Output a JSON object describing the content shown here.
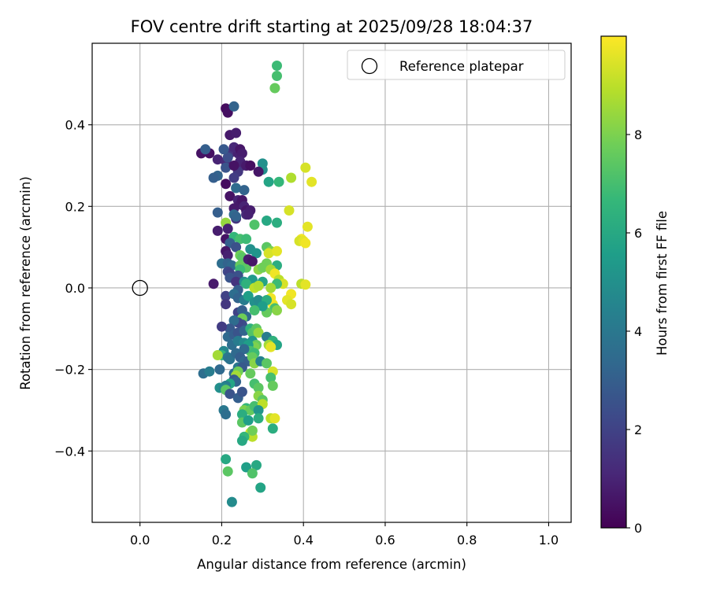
{
  "chart_data": {
    "type": "scatter",
    "title": "FOV centre drift starting at 2025/09/28 18:04:37",
    "xlabel": "Angular distance from reference (arcmin)",
    "ylabel": "Rotation from reference (arcmin)",
    "xlim": [
      -0.117,
      1.055
    ],
    "ylim": [
      -0.575,
      0.6
    ],
    "xticks": [
      0.0,
      0.2,
      0.4,
      0.6,
      0.8,
      1.0
    ],
    "xtick_labels": [
      "0.0",
      "0.2",
      "0.4",
      "0.6",
      "0.8",
      "1.0"
    ],
    "yticks": [
      0.4,
      0.2,
      0.0,
      -0.2,
      -0.4
    ],
    "ytick_labels": [
      "0.4",
      "0.2",
      "0.0",
      "−0.2",
      "−0.4"
    ],
    "grid": true,
    "legend": {
      "position": "top-right",
      "entries": [
        "Reference platepar"
      ]
    },
    "reference_point": {
      "x": 0.0,
      "y": 0.0
    },
    "colorbar": {
      "label": "Hours from first FF file",
      "range": [
        0,
        10
      ],
      "ticks": [
        0,
        2,
        4,
        6,
        8
      ],
      "tick_labels": [
        "0",
        "2",
        "4",
        "6",
        "8"
      ],
      "colormap": [
        "#440154",
        "#482878",
        "#3e4989",
        "#31688e",
        "#26828e",
        "#1f9e89",
        "#35b779",
        "#6ece58",
        "#b5de2b",
        "#fde725"
      ]
    },
    "series": [
      {
        "name": "FOV centre drift",
        "points": [
          [
            0.21,
            0.44,
            0.3
          ],
          [
            0.215,
            0.43,
            0.4
          ],
          [
            0.22,
            0.375,
            0.7
          ],
          [
            0.235,
            0.38,
            0.8
          ],
          [
            0.23,
            0.445,
            3.2
          ],
          [
            0.15,
            0.33,
            0.5
          ],
          [
            0.17,
            0.33,
            0.4
          ],
          [
            0.16,
            0.34,
            3.0
          ],
          [
            0.19,
            0.315,
            1.0
          ],
          [
            0.21,
            0.31,
            1.2
          ],
          [
            0.22,
            0.33,
            1.5
          ],
          [
            0.24,
            0.33,
            0.9
          ],
          [
            0.23,
            0.345,
            1.1
          ],
          [
            0.245,
            0.34,
            0.6
          ],
          [
            0.25,
            0.33,
            0.8
          ],
          [
            0.25,
            0.3,
            1.3
          ],
          [
            0.245,
            0.31,
            1.0
          ],
          [
            0.21,
            0.295,
            2.6
          ],
          [
            0.215,
            0.32,
            2.4
          ],
          [
            0.205,
            0.34,
            2.8
          ],
          [
            0.24,
            0.285,
            1.6
          ],
          [
            0.23,
            0.3,
            0.5
          ],
          [
            0.26,
            0.3,
            0.7
          ],
          [
            0.27,
            0.3,
            0.4
          ],
          [
            0.19,
            0.275,
            3.2
          ],
          [
            0.18,
            0.27,
            3.0
          ],
          [
            0.21,
            0.255,
            0.3
          ],
          [
            0.23,
            0.27,
            1.8
          ],
          [
            0.235,
            0.245,
            3.5
          ],
          [
            0.255,
            0.24,
            3.2
          ],
          [
            0.3,
            0.305,
            5.0
          ],
          [
            0.3,
            0.29,
            5.0
          ],
          [
            0.29,
            0.285,
            0.6
          ],
          [
            0.315,
            0.26,
            5.8
          ],
          [
            0.34,
            0.26,
            6.6
          ],
          [
            0.37,
            0.27,
            8.8
          ],
          [
            0.405,
            0.295,
            9.4
          ],
          [
            0.42,
            0.26,
            9.6
          ],
          [
            0.33,
            0.49,
            7.6
          ],
          [
            0.335,
            0.52,
            7.0
          ],
          [
            0.335,
            0.545,
            6.8
          ],
          [
            0.22,
            0.225,
            0.5
          ],
          [
            0.24,
            0.215,
            1.0
          ],
          [
            0.245,
            0.205,
            0.7
          ],
          [
            0.25,
            0.215,
            0.6
          ],
          [
            0.23,
            0.195,
            0.7
          ],
          [
            0.255,
            0.2,
            1.0
          ],
          [
            0.26,
            0.19,
            0.6
          ],
          [
            0.26,
            0.18,
            1.2
          ],
          [
            0.27,
            0.19,
            0.8
          ],
          [
            0.19,
            0.185,
            3.0
          ],
          [
            0.23,
            0.18,
            3.4
          ],
          [
            0.235,
            0.17,
            1.5
          ],
          [
            0.265,
            0.18,
            0.9
          ],
          [
            0.21,
            0.16,
            8.4
          ],
          [
            0.215,
            0.145,
            0.9
          ],
          [
            0.19,
            0.14,
            0.8
          ],
          [
            0.235,
            0.175,
            3.2
          ],
          [
            0.31,
            0.165,
            6.0
          ],
          [
            0.335,
            0.16,
            6.2
          ],
          [
            0.28,
            0.155,
            7.2
          ],
          [
            0.365,
            0.19,
            9.4
          ],
          [
            0.41,
            0.15,
            9.6
          ],
          [
            0.395,
            0.12,
            9.8
          ],
          [
            0.39,
            0.115,
            9.4
          ],
          [
            0.4,
            0.115,
            9.6
          ],
          [
            0.405,
            0.11,
            9.8
          ],
          [
            0.21,
            0.12,
            0.5
          ],
          [
            0.23,
            0.125,
            6.6
          ],
          [
            0.245,
            0.12,
            7.0
          ],
          [
            0.26,
            0.12,
            6.8
          ],
          [
            0.22,
            0.11,
            3.0
          ],
          [
            0.235,
            0.1,
            2.5
          ],
          [
            0.27,
            0.095,
            5.0
          ],
          [
            0.285,
            0.085,
            5.2
          ],
          [
            0.31,
            0.1,
            7.4
          ],
          [
            0.32,
            0.09,
            8.0
          ],
          [
            0.315,
            0.085,
            9.4
          ],
          [
            0.335,
            0.09,
            9.6
          ],
          [
            0.21,
            0.09,
            0.6
          ],
          [
            0.215,
            0.08,
            0.9
          ],
          [
            0.245,
            0.08,
            7.8
          ],
          [
            0.25,
            0.075,
            7.4
          ],
          [
            0.2,
            0.06,
            3.6
          ],
          [
            0.215,
            0.06,
            3.2
          ],
          [
            0.225,
            0.055,
            3.4
          ],
          [
            0.245,
            0.055,
            7.6
          ],
          [
            0.26,
            0.05,
            7.4
          ],
          [
            0.245,
            0.045,
            6.8
          ],
          [
            0.265,
            0.07,
            0.8
          ],
          [
            0.275,
            0.065,
            0.6
          ],
          [
            0.31,
            0.06,
            7.8
          ],
          [
            0.335,
            0.055,
            6.2
          ],
          [
            0.29,
            0.045,
            8.2
          ],
          [
            0.3,
            0.05,
            7.8
          ],
          [
            0.32,
            0.045,
            8.6
          ],
          [
            0.215,
            0.04,
            2.2
          ],
          [
            0.22,
            0.035,
            2.0
          ],
          [
            0.22,
            0.025,
            2.6
          ],
          [
            0.24,
            0.03,
            2.5
          ],
          [
            0.235,
            0.015,
            1.5
          ],
          [
            0.255,
            0.015,
            5.0
          ],
          [
            0.275,
            0.02,
            5.4
          ],
          [
            0.3,
            0.015,
            5.8
          ],
          [
            0.33,
            0.035,
            9.8
          ],
          [
            0.34,
            0.02,
            9.0
          ],
          [
            0.35,
            0.01,
            9.4
          ],
          [
            0.335,
            0.01,
            6.8
          ],
          [
            0.18,
            0.01,
            0.7
          ],
          [
            0.26,
            0.01,
            6.4
          ],
          [
            0.395,
            0.01,
            9.0
          ],
          [
            0.405,
            0.008,
            9.6
          ],
          [
            0.24,
            -0.005,
            3.0
          ],
          [
            0.28,
            0.0,
            9.0
          ],
          [
            0.29,
            0.005,
            8.8
          ],
          [
            0.32,
            0.0,
            8.6
          ],
          [
            0.37,
            -0.015,
            9.8
          ],
          [
            0.36,
            -0.03,
            9.6
          ],
          [
            0.37,
            -0.04,
            9.4
          ],
          [
            0.32,
            -0.025,
            9.8
          ],
          [
            0.325,
            -0.04,
            9.8
          ],
          [
            0.21,
            -0.02,
            2.0
          ],
          [
            0.21,
            -0.04,
            1.6
          ],
          [
            0.23,
            -0.015,
            3.6
          ],
          [
            0.24,
            -0.025,
            3.2
          ],
          [
            0.255,
            -0.03,
            4.2
          ],
          [
            0.265,
            -0.02,
            5.6
          ],
          [
            0.28,
            -0.035,
            5.0
          ],
          [
            0.29,
            -0.03,
            4.8
          ],
          [
            0.31,
            -0.03,
            6.2
          ],
          [
            0.33,
            -0.05,
            7.0
          ],
          [
            0.335,
            -0.055,
            8.2
          ],
          [
            0.31,
            -0.06,
            7.6
          ],
          [
            0.3,
            -0.045,
            5.5
          ],
          [
            0.28,
            -0.055,
            7.0
          ],
          [
            0.24,
            -0.06,
            2.0
          ],
          [
            0.25,
            -0.055,
            3.0
          ],
          [
            0.26,
            -0.07,
            3.4
          ],
          [
            0.25,
            -0.075,
            7.8
          ],
          [
            0.25,
            -0.09,
            2.4
          ],
          [
            0.24,
            -0.085,
            2.2
          ],
          [
            0.23,
            -0.08,
            3.5
          ],
          [
            0.22,
            -0.1,
            2.8
          ],
          [
            0.2,
            -0.095,
            1.8
          ],
          [
            0.215,
            -0.12,
            3.4
          ],
          [
            0.23,
            -0.115,
            3.0
          ],
          [
            0.24,
            -0.11,
            2.6
          ],
          [
            0.255,
            -0.105,
            3.2
          ],
          [
            0.27,
            -0.1,
            6.4
          ],
          [
            0.275,
            -0.11,
            7.2
          ],
          [
            0.285,
            -0.1,
            7.4
          ],
          [
            0.29,
            -0.11,
            8.4
          ],
          [
            0.275,
            -0.13,
            5.2
          ],
          [
            0.285,
            -0.14,
            7.6
          ],
          [
            0.28,
            -0.145,
            8.0
          ],
          [
            0.31,
            -0.12,
            4.2
          ],
          [
            0.325,
            -0.13,
            6.4
          ],
          [
            0.335,
            -0.14,
            5.8
          ],
          [
            0.315,
            -0.14,
            8.6
          ],
          [
            0.32,
            -0.145,
            9.6
          ],
          [
            0.225,
            -0.14,
            3.6
          ],
          [
            0.24,
            -0.13,
            4.2
          ],
          [
            0.255,
            -0.135,
            4.8
          ],
          [
            0.265,
            -0.14,
            5.6
          ],
          [
            0.27,
            -0.155,
            7.0
          ],
          [
            0.28,
            -0.16,
            6.8
          ],
          [
            0.255,
            -0.15,
            3.4
          ],
          [
            0.205,
            -0.155,
            4.6
          ],
          [
            0.2,
            -0.165,
            6.6
          ],
          [
            0.19,
            -0.165,
            8.6
          ],
          [
            0.215,
            -0.17,
            4.0
          ],
          [
            0.22,
            -0.175,
            3.8
          ],
          [
            0.235,
            -0.16,
            3.4
          ],
          [
            0.245,
            -0.17,
            3.0
          ],
          [
            0.255,
            -0.18,
            3.3
          ],
          [
            0.265,
            -0.18,
            3.0
          ],
          [
            0.275,
            -0.17,
            7.6
          ],
          [
            0.28,
            -0.185,
            8.2
          ],
          [
            0.295,
            -0.18,
            4.4
          ],
          [
            0.31,
            -0.185,
            7.4
          ],
          [
            0.325,
            -0.205,
            9.4
          ],
          [
            0.24,
            -0.195,
            4.0
          ],
          [
            0.25,
            -0.195,
            2.8
          ],
          [
            0.23,
            -0.21,
            3.6
          ],
          [
            0.24,
            -0.205,
            7.8
          ],
          [
            0.235,
            -0.215,
            8.6
          ],
          [
            0.27,
            -0.21,
            7.6
          ],
          [
            0.32,
            -0.22,
            7.0
          ],
          [
            0.155,
            -0.21,
            3.6
          ],
          [
            0.17,
            -0.205,
            4.2
          ],
          [
            0.195,
            -0.2,
            3.4
          ],
          [
            0.23,
            -0.225,
            2.8
          ],
          [
            0.235,
            -0.23,
            3.2
          ],
          [
            0.22,
            -0.235,
            5.8
          ],
          [
            0.21,
            -0.24,
            4.2
          ],
          [
            0.195,
            -0.245,
            5.0
          ],
          [
            0.205,
            -0.245,
            4.6
          ],
          [
            0.21,
            -0.25,
            7.4
          ],
          [
            0.22,
            -0.26,
            2.6
          ],
          [
            0.24,
            -0.27,
            3.0
          ],
          [
            0.25,
            -0.255,
            2.6
          ],
          [
            0.28,
            -0.235,
            7.0
          ],
          [
            0.29,
            -0.245,
            7.4
          ],
          [
            0.325,
            -0.24,
            7.6
          ],
          [
            0.29,
            -0.265,
            8.2
          ],
          [
            0.3,
            -0.275,
            7.4
          ],
          [
            0.26,
            -0.295,
            6.6
          ],
          [
            0.255,
            -0.3,
            8.0
          ],
          [
            0.27,
            -0.3,
            7.6
          ],
          [
            0.28,
            -0.29,
            7.0
          ],
          [
            0.3,
            -0.285,
            9.0
          ],
          [
            0.29,
            -0.3,
            5.2
          ],
          [
            0.205,
            -0.3,
            4.0
          ],
          [
            0.21,
            -0.31,
            3.6
          ],
          [
            0.25,
            -0.31,
            6.2
          ],
          [
            0.25,
            -0.33,
            7.4
          ],
          [
            0.265,
            -0.325,
            5.6
          ],
          [
            0.29,
            -0.32,
            6.2
          ],
          [
            0.32,
            -0.32,
            9.0
          ],
          [
            0.33,
            -0.32,
            9.6
          ],
          [
            0.325,
            -0.345,
            6.2
          ],
          [
            0.27,
            -0.355,
            9.2
          ],
          [
            0.275,
            -0.365,
            9.0
          ],
          [
            0.255,
            -0.365,
            6.6
          ],
          [
            0.25,
            -0.375,
            6.0
          ],
          [
            0.275,
            -0.35,
            7.8
          ],
          [
            0.21,
            -0.42,
            6.0
          ],
          [
            0.215,
            -0.45,
            7.4
          ],
          [
            0.26,
            -0.44,
            5.6
          ],
          [
            0.285,
            -0.435,
            6.0
          ],
          [
            0.275,
            -0.455,
            7.2
          ],
          [
            0.295,
            -0.49,
            5.8
          ],
          [
            0.225,
            -0.525,
            4.8
          ]
        ]
      }
    ]
  }
}
